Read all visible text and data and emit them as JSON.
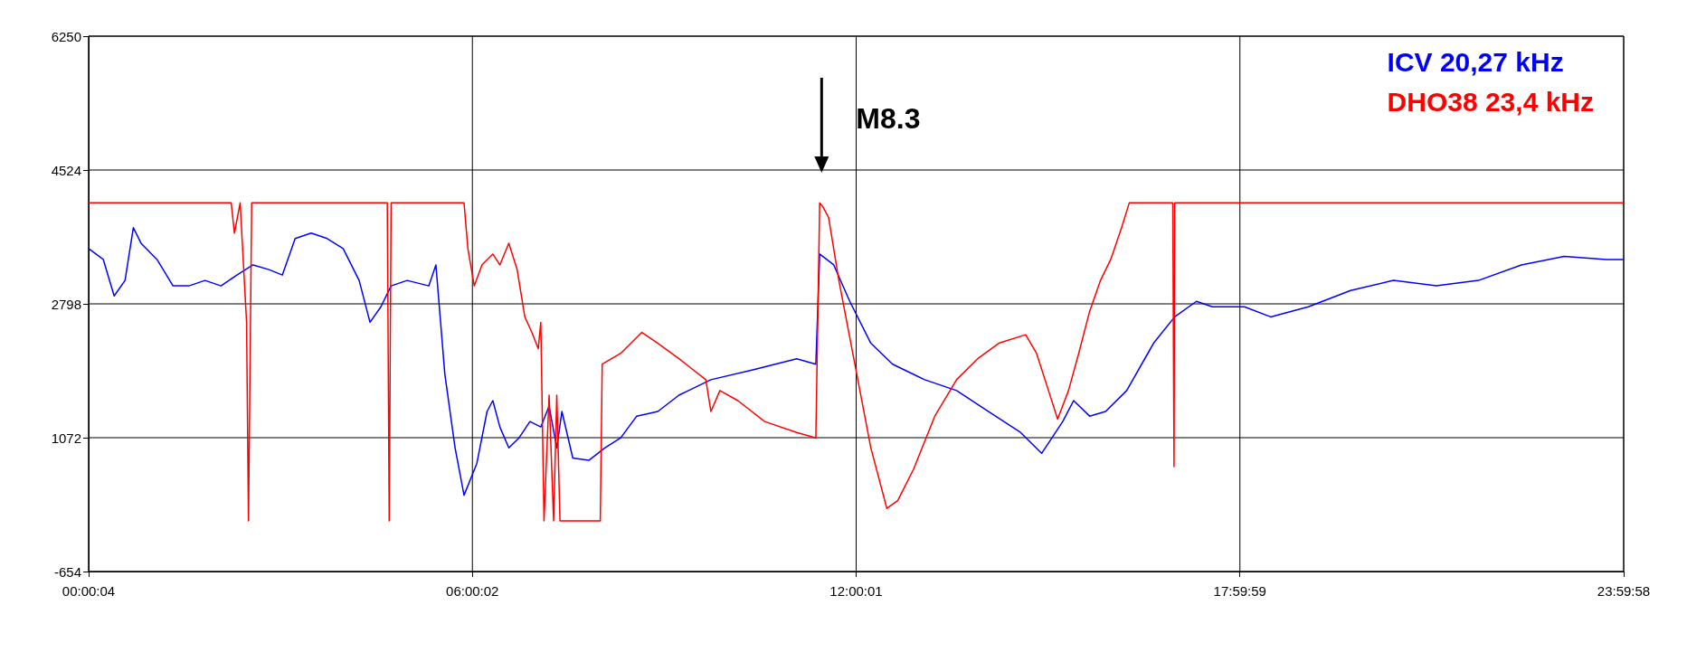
{
  "chart_data": {
    "type": "line",
    "xlim": [
      0.00111,
      23.99944
    ],
    "ylim": [
      -654,
      6250
    ],
    "xticks": [
      {
        "value": 0.00111,
        "label": "00:00:04"
      },
      {
        "value": 6.00056,
        "label": "06:00:02"
      },
      {
        "value": 12.00028,
        "label": "12:00:01"
      },
      {
        "value": 17.99972,
        "label": "17:59:59"
      },
      {
        "value": 23.99944,
        "label": "23:59:58"
      }
    ],
    "yticks": [
      -654,
      1072,
      2798,
      4524,
      6250
    ],
    "grid": true,
    "legend": "top right",
    "marker": "none",
    "line_style": "solid",
    "annotations": [
      "M8.3"
    ],
    "series": [
      {
        "name": "ICV 20,27 kHz",
        "color": "#0000ff",
        "x": [
          0.00111,
          0.23,
          0.4,
          0.57,
          0.7,
          0.82,
          1.07,
          1.32,
          1.57,
          1.82,
          2.07,
          2.32,
          2.57,
          2.82,
          3.03,
          3.23,
          3.48,
          3.73,
          3.98,
          4.23,
          4.4,
          4.57,
          4.73,
          4.98,
          5.32,
          5.43,
          5.57,
          5.73,
          5.87,
          6.07,
          6.23,
          6.32,
          6.43,
          6.57,
          6.73,
          6.9,
          7.07,
          7.2,
          7.32,
          7.4,
          7.57,
          7.82,
          8.07,
          8.32,
          8.57,
          8.9,
          9.23,
          9.73,
          10.4,
          11.07,
          11.37,
          11.43,
          11.65,
          11.9,
          12.23,
          12.57,
          13.07,
          13.57,
          14.07,
          14.57,
          14.9,
          15.23,
          15.4,
          15.65,
          15.9,
          16.23,
          16.65,
          16.98,
          17.32,
          17.57,
          18.07,
          18.48,
          19.07,
          19.73,
          20.4,
          21.07,
          21.73,
          22.4,
          23.07,
          23.73,
          23.999
        ],
        "values": [
          3510,
          3370,
          2900,
          3100,
          3780,
          3580,
          3370,
          3030,
          3030,
          3100,
          3030,
          3170,
          3300,
          3240,
          3170,
          3640,
          3710,
          3640,
          3510,
          3100,
          2560,
          2760,
          3030,
          3100,
          3030,
          3300,
          1890,
          940,
          330,
          740,
          1410,
          1550,
          1210,
          940,
          1070,
          1280,
          1210,
          1480,
          940,
          1410,
          810,
          780,
          940,
          1070,
          1350,
          1410,
          1620,
          1820,
          1950,
          2090,
          2020,
          3440,
          3300,
          2830,
          2290,
          2020,
          1820,
          1680,
          1410,
          1140,
          870,
          1280,
          1550,
          1350,
          1410,
          1680,
          2290,
          2630,
          2830,
          2760,
          2760,
          2630,
          2760,
          2970,
          3100,
          3030,
          3100,
          3300,
          3410,
          3370,
          3370
        ]
      },
      {
        "name": "DHO38 23,4 kHz",
        "color": "#ff0000",
        "x": [
          0.00111,
          2.23,
          2.28,
          2.37,
          2.47,
          2.5,
          2.55,
          4.67,
          4.7,
          4.73,
          5.87,
          5.93,
          6.03,
          6.15,
          6.32,
          6.43,
          6.57,
          6.7,
          6.82,
          6.93,
          7.03,
          7.07,
          7.12,
          7.2,
          7.27,
          7.32,
          7.37,
          8.0,
          8.03,
          8.32,
          8.65,
          8.9,
          9.23,
          9.65,
          9.73,
          9.87,
          10.15,
          10.57,
          11.07,
          11.37,
          11.43,
          11.48,
          11.57,
          11.73,
          11.98,
          12.23,
          12.48,
          12.65,
          12.9,
          13.23,
          13.57,
          13.9,
          14.23,
          14.65,
          14.82,
          14.98,
          15.15,
          15.32,
          15.48,
          15.65,
          15.82,
          15.98,
          16.15,
          16.27,
          16.95,
          16.97,
          16.98,
          23.999
        ],
        "values": [
          4100,
          4100,
          3710,
          4100,
          2560,
          0,
          4100,
          4100,
          0,
          4100,
          4100,
          3510,
          3030,
          3300,
          3440,
          3300,
          3580,
          3240,
          2630,
          2430,
          2220,
          2560,
          0,
          1620,
          0,
          1620,
          0,
          0,
          2020,
          2160,
          2430,
          2290,
          2090,
          1820,
          1410,
          1680,
          1550,
          1280,
          1140,
          1070,
          4100,
          4050,
          3910,
          3100,
          2020,
          940,
          160,
          260,
          670,
          1350,
          1820,
          2090,
          2290,
          2400,
          2160,
          1750,
          1310,
          1680,
          2160,
          2700,
          3100,
          3370,
          3780,
          4100,
          4100,
          700,
          4100,
          4100
        ]
      }
    ]
  }
}
